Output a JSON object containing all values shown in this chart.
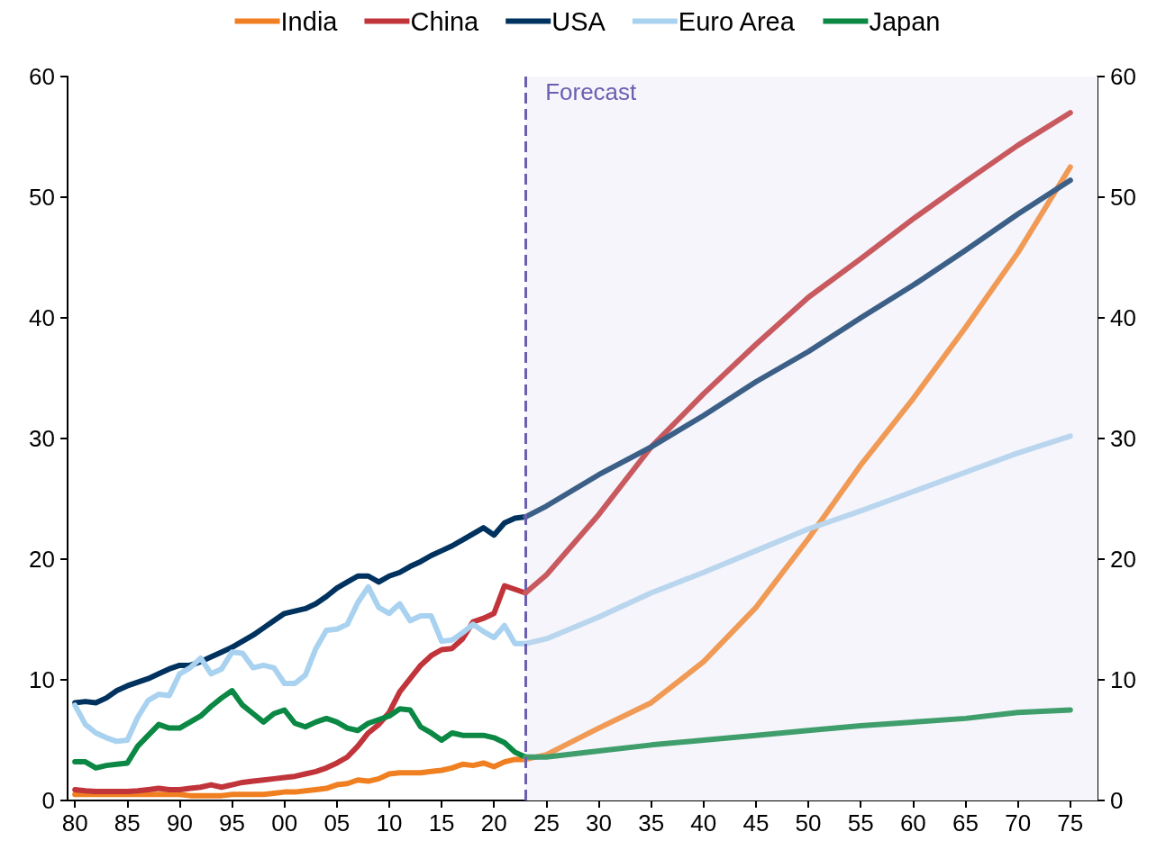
{
  "chart_data": {
    "type": "line",
    "legend": "top",
    "grid": false,
    "marker": "none",
    "line_style": "solid",
    "xlim": [
      1979.3,
      2077.6
    ],
    "xticks": [
      {
        "value": 1980,
        "label": "80"
      },
      {
        "value": 1985,
        "label": "85"
      },
      {
        "value": 1990,
        "label": "90"
      },
      {
        "value": 1995,
        "label": "95"
      },
      {
        "value": 2000,
        "label": "00"
      },
      {
        "value": 2005,
        "label": "05"
      },
      {
        "value": 2010,
        "label": "10"
      },
      {
        "value": 2015,
        "label": "15"
      },
      {
        "value": 2020,
        "label": "20"
      },
      {
        "value": 2025,
        "label": "25"
      },
      {
        "value": 2030,
        "label": "30"
      },
      {
        "value": 2035,
        "label": "35"
      },
      {
        "value": 2040,
        "label": "40"
      },
      {
        "value": 2045,
        "label": "45"
      },
      {
        "value": 2050,
        "label": "50"
      },
      {
        "value": 2055,
        "label": "55"
      },
      {
        "value": 2060,
        "label": "60"
      },
      {
        "value": 2065,
        "label": "65"
      },
      {
        "value": 2070,
        "label": "70"
      },
      {
        "value": 2075,
        "label": "75"
      }
    ],
    "ylim": [
      0,
      60
    ],
    "yticks": [
      0,
      10,
      20,
      30,
      40,
      50,
      60
    ],
    "y2lim": [
      0,
      60
    ],
    "y2ticks": [
      0,
      10,
      20,
      30,
      40,
      50,
      60
    ],
    "x": [
      1980,
      1981,
      1982,
      1983,
      1984,
      1985,
      1986,
      1987,
      1988,
      1989,
      1990,
      1991,
      1992,
      1993,
      1994,
      1995,
      1996,
      1997,
      1998,
      1999,
      2000,
      2001,
      2002,
      2003,
      2004,
      2005,
      2006,
      2007,
      2008,
      2009,
      2010,
      2011,
      2012,
      2013,
      2014,
      2015,
      2016,
      2017,
      2018,
      2019,
      2020,
      2021,
      2022,
      2023
    ],
    "series": [
      {
        "name": "India",
        "color": "#f07f21",
        "values": [
          0.5,
          0.5,
          0.5,
          0.5,
          0.5,
          0.5,
          0.5,
          0.5,
          0.5,
          0.5,
          0.5,
          0.4,
          0.4,
          0.4,
          0.4,
          0.5,
          0.5,
          0.5,
          0.5,
          0.6,
          0.7,
          0.7,
          0.8,
          0.9,
          1.0,
          1.3,
          1.4,
          1.7,
          1.6,
          1.8,
          2.2,
          2.3,
          2.3,
          2.3,
          2.4,
          2.5,
          2.7,
          3.0,
          2.9,
          3.1,
          2.8,
          3.2,
          3.4,
          3.4
        ]
      },
      {
        "name": "China",
        "color": "#c0343a",
        "values": [
          0.9,
          0.8,
          0.75,
          0.75,
          0.75,
          0.75,
          0.8,
          0.9,
          1.0,
          0.9,
          0.9,
          1.0,
          1.1,
          1.3,
          1.1,
          1.3,
          1.5,
          1.6,
          1.7,
          1.8,
          1.9,
          2.0,
          2.2,
          2.4,
          2.7,
          3.1,
          3.6,
          4.5,
          5.6,
          6.3,
          7.3,
          9.0,
          10.1,
          11.2,
          12.0,
          12.5,
          12.6,
          13.4,
          14.8,
          15.1,
          15.5,
          17.8,
          17.5,
          17.2
        ]
      },
      {
        "name": "USA",
        "color": "#00325f",
        "values": [
          8.1,
          8.2,
          8.1,
          8.5,
          9.1,
          9.5,
          9.8,
          10.1,
          10.5,
          10.9,
          11.2,
          11.2,
          11.5,
          11.9,
          12.3,
          12.7,
          13.2,
          13.7,
          14.3,
          14.9,
          15.5,
          15.7,
          15.9,
          16.3,
          16.9,
          17.6,
          18.1,
          18.6,
          18.6,
          18.1,
          18.6,
          18.9,
          19.4,
          19.8,
          20.3,
          20.7,
          21.1,
          21.6,
          22.1,
          22.6,
          22.0,
          23.0,
          23.4,
          23.5
        ]
      },
      {
        "name": "Euro Area",
        "color": "#a9d2f0",
        "values": [
          7.9,
          6.3,
          5.6,
          5.2,
          4.9,
          5.0,
          6.9,
          8.3,
          8.8,
          8.7,
          10.5,
          11.0,
          11.8,
          10.5,
          10.9,
          12.3,
          12.2,
          11.0,
          11.2,
          11.0,
          9.7,
          9.7,
          10.4,
          12.6,
          14.1,
          14.2,
          14.6,
          16.4,
          17.7,
          16.0,
          15.5,
          16.3,
          14.9,
          15.3,
          15.3,
          13.2,
          13.3,
          13.9,
          14.6,
          14.0,
          13.5,
          14.5,
          13.0,
          13.0
        ]
      },
      {
        "name": "Japan",
        "color": "#0b8844",
        "values": [
          3.2,
          3.2,
          2.7,
          2.9,
          3.0,
          3.1,
          4.5,
          5.4,
          6.3,
          6.0,
          6.0,
          6.5,
          7.0,
          7.8,
          8.5,
          9.1,
          7.9,
          7.2,
          6.5,
          7.2,
          7.5,
          6.4,
          6.1,
          6.5,
          6.8,
          6.5,
          6.0,
          5.8,
          6.4,
          6.7,
          7.0,
          7.6,
          7.5,
          6.1,
          5.6,
          5.0,
          5.6,
          5.4,
          5.4,
          5.4,
          5.2,
          4.8,
          4.0,
          3.6
        ]
      },
      {
        "color": "#f09a55",
        "x": [
          2023,
          2025,
          2030,
          2035,
          2040,
          2045,
          2050,
          2055,
          2060,
          2065,
          2070,
          2075
        ],
        "values": [
          3.4,
          3.8,
          6.0,
          8.1,
          11.5,
          16.0,
          21.7,
          27.8,
          33.3,
          39.2,
          45.4,
          52.5
        ]
      },
      {
        "color": "#c85a5f",
        "x": [
          2023,
          2025,
          2030,
          2035,
          2040,
          2045,
          2050,
          2055,
          2060,
          2065,
          2070,
          2075
        ],
        "values": [
          17.2,
          18.7,
          23.7,
          29.3,
          33.7,
          37.8,
          41.7,
          44.9,
          48.2,
          51.3,
          54.3,
          57.0
        ]
      },
      {
        "color": "#3b5f86",
        "x": [
          2023,
          2025,
          2030,
          2035,
          2040,
          2045,
          2050,
          2055,
          2060,
          2065,
          2070,
          2075
        ],
        "values": [
          23.5,
          24.4,
          27.0,
          29.3,
          31.9,
          34.7,
          37.2,
          40.0,
          42.7,
          45.6,
          48.6,
          51.4
        ]
      },
      {
        "color": "#b9d6ee",
        "x": [
          2023,
          2025,
          2030,
          2035,
          2040,
          2045,
          2050,
          2055,
          2060,
          2065,
          2070,
          2075
        ],
        "values": [
          13.0,
          13.4,
          15.2,
          17.2,
          18.9,
          20.7,
          22.5,
          24.0,
          25.6,
          27.2,
          28.8,
          30.2
        ]
      },
      {
        "color": "#3f9e6c",
        "x": [
          2023,
          2025,
          2030,
          2035,
          2040,
          2045,
          2050,
          2055,
          2060,
          2065,
          2070,
          2075
        ],
        "values": [
          3.6,
          3.6,
          4.1,
          4.6,
          5.0,
          5.4,
          5.8,
          6.2,
          6.5,
          6.8,
          7.3,
          7.5
        ]
      }
    ],
    "ref_lines": [
      {
        "axis": "x",
        "value": 2023,
        "label": "Forecast",
        "color": "#6b5fb0",
        "line_style": "dashed"
      }
    ],
    "bands": [
      {
        "axis": "x",
        "from": 2023,
        "to": 2077.6,
        "color": "#f5f5fb"
      }
    ]
  }
}
